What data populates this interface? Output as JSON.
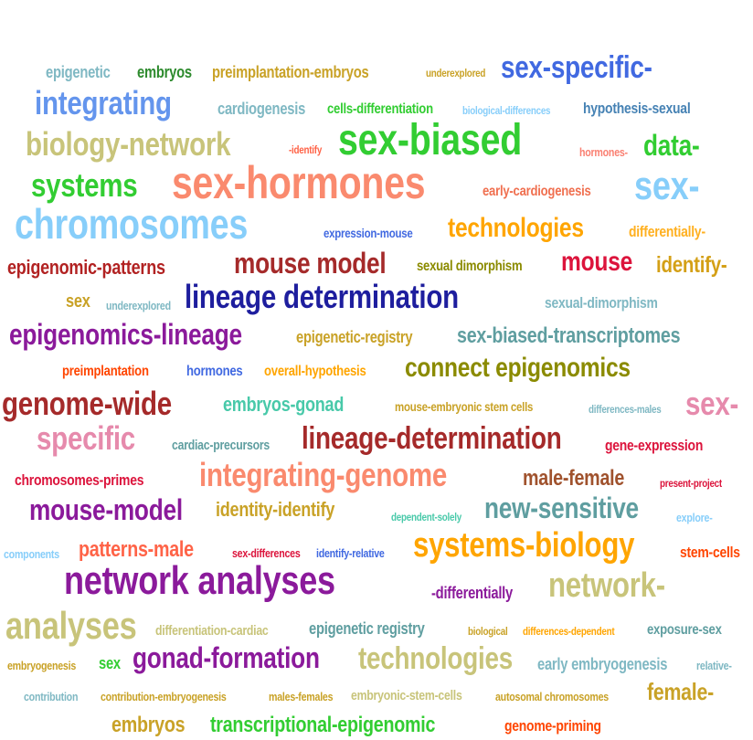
{
  "words": [
    {
      "text": "epigenetic",
      "color": "#7fb8c3"
    },
    {
      "text": "embryos",
      "color": "#2e8b2e"
    },
    {
      "text": "preimplantation-embryos",
      "color": "#c9a227"
    },
    {
      "text": "underexplored",
      "color": "#c9a227"
    },
    {
      "text": "sex-specific-",
      "color": "#4169e1"
    },
    {
      "text": "integrating",
      "color": "#6495ed"
    },
    {
      "text": "cardiogenesis",
      "color": "#7fb8c3"
    },
    {
      "text": "cells-differentiation",
      "color": "#32cd32"
    },
    {
      "text": "biological-differences",
      "color": "#87cefa"
    },
    {
      "text": "hypothesis-sexual",
      "color": "#4682b4"
    },
    {
      "text": "biology-network",
      "color": "#c8c47a"
    },
    {
      "text": "-identify",
      "color": "#ff6347"
    },
    {
      "text": "sex-biased",
      "color": "#32cd32"
    },
    {
      "text": "hormones-",
      "color": "#fa8072"
    },
    {
      "text": "data-",
      "color": "#32cd32"
    },
    {
      "text": "systems",
      "color": "#32cd32"
    },
    {
      "text": "sex-hormones",
      "color": "#fa8a6e"
    },
    {
      "text": "early-cardiogenesis",
      "color": "#f07050"
    },
    {
      "text": "sex-",
      "color": "#87cefa"
    },
    {
      "text": "chromosomes",
      "color": "#87cefa"
    },
    {
      "text": "expression-mouse",
      "color": "#4169e1"
    },
    {
      "text": "technologies",
      "color": "#ffa500"
    },
    {
      "text": "differentially-",
      "color": "#ffb020"
    },
    {
      "text": "epigenomic-patterns",
      "color": "#b22222"
    },
    {
      "text": "mouse model",
      "color": "#a52a2a"
    },
    {
      "text": "sexual dimorphism",
      "color": "#8b8b00"
    },
    {
      "text": "mouse",
      "color": "#dc143c"
    },
    {
      "text": "identify-",
      "color": "#d4a017"
    },
    {
      "text": "sex",
      "color": "#c9a227"
    },
    {
      "text": "underexplored",
      "color": "#7fb8c3"
    },
    {
      "text": "lineage determination",
      "color": "#1e1e9e"
    },
    {
      "text": "sexual-dimorphism",
      "color": "#7fb8c3"
    },
    {
      "text": "epigenomics-lineage",
      "color": "#8b1a9b"
    },
    {
      "text": "epigenetic-registry",
      "color": "#c9a227"
    },
    {
      "text": "sex-biased-transcriptomes",
      "color": "#5f9ea0"
    },
    {
      "text": "preimplantation",
      "color": "#ff4500"
    },
    {
      "text": "hormones",
      "color": "#4169e1"
    },
    {
      "text": "overall-hypothesis",
      "color": "#ffa500"
    },
    {
      "text": "connect epigenomics",
      "color": "#8b8b00"
    },
    {
      "text": "genome-wide",
      "color": "#a52a2a"
    },
    {
      "text": "embryos-gonad",
      "color": "#48c9a9"
    },
    {
      "text": "mouse-embryonic stem cells",
      "color": "#c9a227"
    },
    {
      "text": "differences-males",
      "color": "#7fb8c3"
    },
    {
      "text": "sex-",
      "color": "#e68aac"
    },
    {
      "text": "specific",
      "color": "#e68aac"
    },
    {
      "text": "cardiac-precursors",
      "color": "#5f9ea0"
    },
    {
      "text": "lineage-determination",
      "color": "#a52a2a"
    },
    {
      "text": "gene-expression",
      "color": "#dc143c"
    },
    {
      "text": "chromosomes-primes",
      "color": "#dc143c"
    },
    {
      "text": "integrating-genome",
      "color": "#fa8a6e"
    },
    {
      "text": "male-female",
      "color": "#a0522d"
    },
    {
      "text": "present-project",
      "color": "#dc143c"
    },
    {
      "text": "mouse-model",
      "color": "#8b1a9b"
    },
    {
      "text": "identity-identify",
      "color": "#c9a227"
    },
    {
      "text": "dependent-solely",
      "color": "#48c9a9"
    },
    {
      "text": "new-sensitive",
      "color": "#5f9ea0"
    },
    {
      "text": "explore-",
      "color": "#87cefa"
    },
    {
      "text": "components",
      "color": "#87cefa"
    },
    {
      "text": "patterns-male",
      "color": "#ff6347"
    },
    {
      "text": "sex-differences",
      "color": "#dc143c"
    },
    {
      "text": "identify-relative",
      "color": "#4169e1"
    },
    {
      "text": "systems-biology",
      "color": "#ffa500"
    },
    {
      "text": "stem-cells",
      "color": "#ff4500"
    },
    {
      "text": "network analyses",
      "color": "#8b1a9b"
    },
    {
      "text": "-differentially",
      "color": "#8b1a9b"
    },
    {
      "text": "network-",
      "color": "#c8c47a"
    },
    {
      "text": "analyses",
      "color": "#c8c47a"
    },
    {
      "text": "differentiation-cardiac",
      "color": "#c8c47a"
    },
    {
      "text": "epigenetic registry",
      "color": "#5f9ea0"
    },
    {
      "text": "biological",
      "color": "#c9a227"
    },
    {
      "text": "differences-dependent",
      "color": "#ffa500"
    },
    {
      "text": "exposure-sex",
      "color": "#5f9ea0"
    },
    {
      "text": "embryogenesis",
      "color": "#c9a227"
    },
    {
      "text": "sex",
      "color": "#32cd32"
    },
    {
      "text": "gonad-formation",
      "color": "#8b1a9b"
    },
    {
      "text": "technologies",
      "color": "#c8c47a"
    },
    {
      "text": "early embryogenesis",
      "color": "#7fb8c3"
    },
    {
      "text": "relative-",
      "color": "#7fb8c3"
    },
    {
      "text": "contribution",
      "color": "#7fb8c3"
    },
    {
      "text": "contribution-embryogenesis",
      "color": "#c9a227"
    },
    {
      "text": "males-females",
      "color": "#c9a227"
    },
    {
      "text": "embryonic-stem-cells",
      "color": "#c8c47a"
    },
    {
      "text": "autosomal chromosomes",
      "color": "#c9a227"
    },
    {
      "text": "female-",
      "color": "#c9a227"
    },
    {
      "text": "embryos",
      "color": "#c9a227"
    },
    {
      "text": "transcriptional-epigenomic",
      "color": "#32cd32"
    },
    {
      "text": "genome-priming",
      "color": "#ff4500"
    }
  ]
}
